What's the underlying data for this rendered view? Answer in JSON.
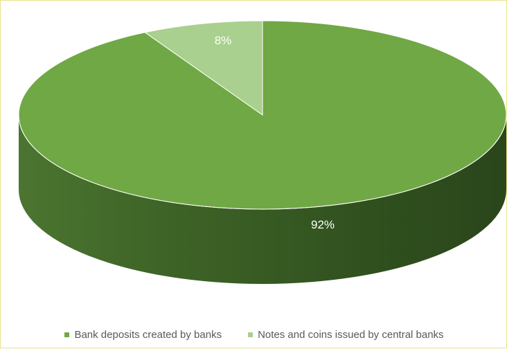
{
  "chart_data": {
    "type": "pie",
    "title": "",
    "legend_position": "bottom",
    "start_angle_deg": 0,
    "direction": "clockwise",
    "slices": [
      {
        "label": "Bank deposits created by banks",
        "value": 92,
        "value_label": "92%",
        "color": "#70a845"
      },
      {
        "label": "Notes and coins issued by central banks",
        "value": 8,
        "value_label": "8%",
        "color": "#a9d08e"
      }
    ]
  }
}
